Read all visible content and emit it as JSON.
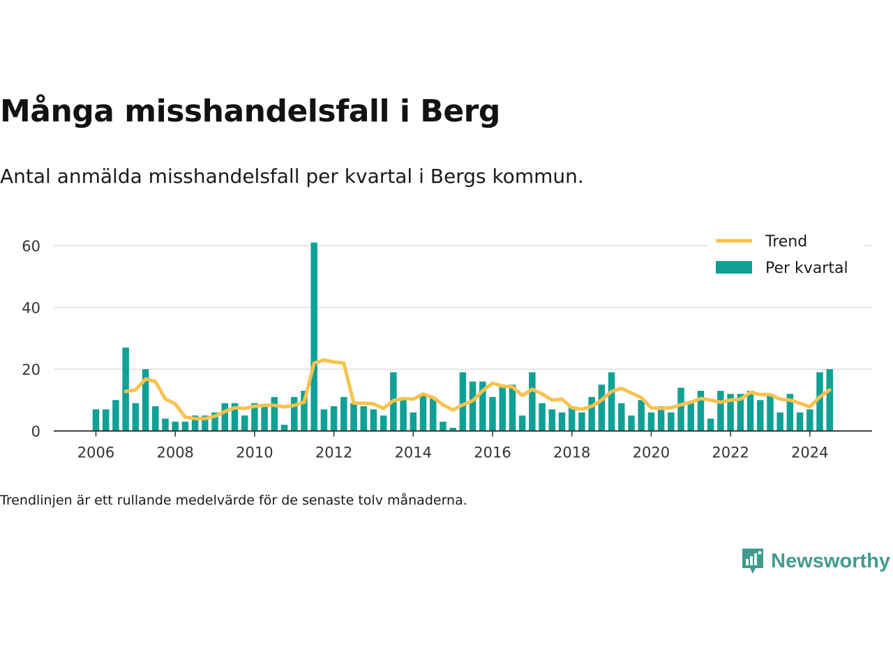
{
  "header": {
    "title": "Många misshandelsfall i Berg",
    "subtitle": "Antal anmälda misshandelsfall per kvartal i Bergs kommun."
  },
  "footer": {
    "note": "Trendlinjen är ett rullande medelvärde för de senaste tolv månaderna.",
    "brand": "Newsworthy"
  },
  "colors": {
    "bar": "#0fa196",
    "trend": "#f9c24d",
    "grid": "#dddddd",
    "axis": "#333333",
    "brand": "#3f9c8f"
  },
  "chart_data": {
    "type": "bar",
    "title": "Många misshandelsfall i Berg",
    "subtitle": "Antal anmälda misshandelsfall per kvartal i Bergs kommun.",
    "xlabel": "",
    "ylabel": "",
    "ylim": [
      0,
      60
    ],
    "yticks": [
      0,
      20,
      40,
      60
    ],
    "xticks": [
      "2006",
      "2008",
      "2010",
      "2012",
      "2014",
      "2016",
      "2018",
      "2020",
      "2022",
      "2024"
    ],
    "grid": true,
    "legend": "top-right",
    "categories": [
      "2006 Q1",
      "2006 Q2",
      "2006 Q3",
      "2006 Q4",
      "2007 Q1",
      "2007 Q2",
      "2007 Q3",
      "2007 Q4",
      "2008 Q1",
      "2008 Q2",
      "2008 Q3",
      "2008 Q4",
      "2009 Q1",
      "2009 Q2",
      "2009 Q3",
      "2009 Q4",
      "2010 Q1",
      "2010 Q2",
      "2010 Q3",
      "2010 Q4",
      "2011 Q1",
      "2011 Q2",
      "2011 Q3",
      "2011 Q4",
      "2012 Q1",
      "2012 Q2",
      "2012 Q3",
      "2012 Q4",
      "2013 Q1",
      "2013 Q2",
      "2013 Q3",
      "2013 Q4",
      "2014 Q1",
      "2014 Q2",
      "2014 Q3",
      "2014 Q4",
      "2015 Q1",
      "2015 Q2",
      "2015 Q3",
      "2015 Q4",
      "2016 Q1",
      "2016 Q2",
      "2016 Q3",
      "2016 Q4",
      "2017 Q1",
      "2017 Q2",
      "2017 Q3",
      "2017 Q4",
      "2018 Q1",
      "2018 Q2",
      "2018 Q3",
      "2018 Q4",
      "2019 Q1",
      "2019 Q2",
      "2019 Q3",
      "2019 Q4",
      "2020 Q1",
      "2020 Q2",
      "2020 Q3",
      "2020 Q4",
      "2021 Q1",
      "2021 Q2",
      "2021 Q3",
      "2021 Q4",
      "2022 Q1",
      "2022 Q2",
      "2022 Q3",
      "2022 Q4",
      "2023 Q1",
      "2023 Q2",
      "2023 Q3",
      "2023 Q4",
      "2024 Q1",
      "2024 Q2",
      "2024 Q3"
    ],
    "series": [
      {
        "name": "Per kvartal",
        "kind": "bar",
        "values": [
          7,
          7,
          10,
          27,
          9,
          20,
          8,
          4,
          3,
          3,
          5,
          5,
          6,
          9,
          9,
          5,
          9,
          8,
          11,
          2,
          11,
          13,
          61,
          7,
          8,
          11,
          9,
          8,
          7,
          5,
          19,
          10,
          6,
          12,
          11,
          3,
          1,
          19,
          16,
          16,
          11,
          15,
          15,
          5,
          19,
          9,
          7,
          6,
          8,
          6,
          11,
          15,
          19,
          9,
          5,
          10,
          6,
          8,
          6,
          14,
          9,
          13,
          4,
          13,
          12,
          12,
          13,
          10,
          12,
          6,
          12,
          6,
          7,
          19,
          20
        ]
      },
      {
        "name": "Trend",
        "kind": "line",
        "values": [
          null,
          null,
          null,
          12.8,
          13.3,
          16.8,
          16.0,
          10.3,
          8.8,
          4.5,
          4.0,
          4.0,
          4.8,
          6.3,
          7.5,
          7.3,
          8.0,
          8.3,
          8.3,
          7.8,
          8.3,
          9.3,
          22.0,
          23.0,
          22.3,
          22.0,
          9.0,
          9.0,
          8.8,
          7.3,
          9.8,
          10.5,
          10.3,
          12.0,
          10.8,
          8.5,
          6.8,
          8.5,
          9.8,
          13.0,
          15.5,
          14.5,
          14.3,
          11.5,
          13.5,
          12.0,
          10.0,
          10.3,
          7.5,
          7.0,
          8.0,
          10.0,
          12.8,
          13.8,
          12.3,
          10.8,
          7.5,
          7.3,
          7.5,
          8.5,
          9.3,
          10.5,
          10.0,
          9.3,
          10.0,
          10.3,
          12.5,
          11.8,
          11.8,
          10.3,
          10.0,
          9.0,
          7.8,
          11.0,
          13.3
        ]
      }
    ]
  }
}
